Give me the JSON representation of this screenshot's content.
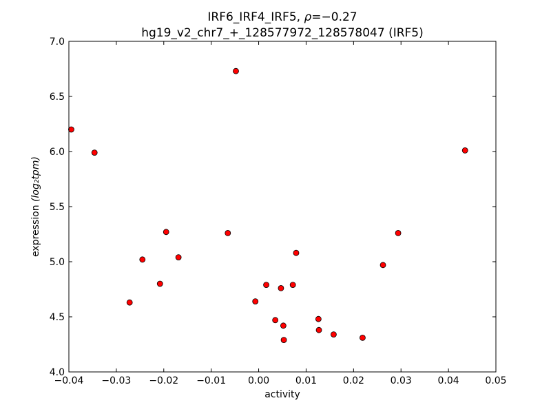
{
  "chart_data": {
    "type": "scatter",
    "title_line1_prefix": "IRF6_IRF4_IRF5, ",
    "title_rho_symbol": "ρ",
    "title_rho_value": "=−0.27",
    "title_line2": "hg19_v2_chr7_+_128577972_128578047 (IRF5)",
    "xlabel": "activity",
    "ylabel_prefix": "expression ",
    "ylabel_math": "(log₂tpm)",
    "xlim": [
      -0.04,
      0.05
    ],
    "ylim": [
      4.0,
      7.0
    ],
    "xticks": [
      -0.04,
      -0.03,
      -0.02,
      -0.01,
      0.0,
      0.01,
      0.02,
      0.03,
      0.04,
      0.05
    ],
    "xtick_labels": [
      "−0.04",
      "−0.03",
      "−0.02",
      "−0.01",
      "0.00",
      "0.01",
      "0.02",
      "0.03",
      "0.04",
      "0.05"
    ],
    "yticks": [
      4.0,
      4.5,
      5.0,
      5.5,
      6.0,
      6.5,
      7.0
    ],
    "ytick_labels": [
      "4.0",
      "4.5",
      "5.0",
      "5.5",
      "6.0",
      "6.5",
      "7.0"
    ],
    "marker_color": "#ff0000",
    "points": [
      {
        "x": -0.0395,
        "y": 6.2
      },
      {
        "x": -0.0346,
        "y": 5.99
      },
      {
        "x": -0.0272,
        "y": 4.63
      },
      {
        "x": -0.0245,
        "y": 5.02
      },
      {
        "x": -0.0208,
        "y": 4.8
      },
      {
        "x": -0.0195,
        "y": 5.27
      },
      {
        "x": -0.0169,
        "y": 5.04
      },
      {
        "x": -0.0065,
        "y": 5.26
      },
      {
        "x": -0.0048,
        "y": 6.73
      },
      {
        "x": -0.0007,
        "y": 4.64
      },
      {
        "x": 0.0016,
        "y": 4.79
      },
      {
        "x": 0.0035,
        "y": 4.47
      },
      {
        "x": 0.0047,
        "y": 4.76
      },
      {
        "x": 0.0052,
        "y": 4.42
      },
      {
        "x": 0.0053,
        "y": 4.29
      },
      {
        "x": 0.0072,
        "y": 4.79
      },
      {
        "x": 0.0079,
        "y": 5.08
      },
      {
        "x": 0.0126,
        "y": 4.48
      },
      {
        "x": 0.0127,
        "y": 4.38
      },
      {
        "x": 0.0158,
        "y": 4.34
      },
      {
        "x": 0.0219,
        "y": 4.31
      },
      {
        "x": 0.0262,
        "y": 4.97
      },
      {
        "x": 0.0294,
        "y": 5.26
      },
      {
        "x": 0.0435,
        "y": 6.01
      }
    ]
  }
}
